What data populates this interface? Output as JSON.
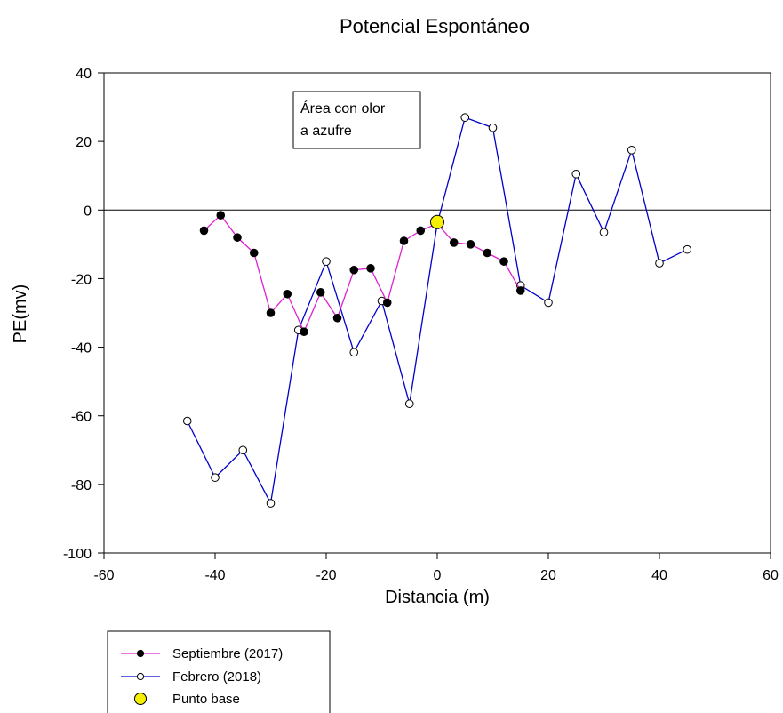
{
  "chart_data": {
    "type": "line",
    "title": "Potencial Espontáneo",
    "xlabel": "Distancia (m)",
    "ylabel": "PE(mv)",
    "xlim": [
      -60,
      60
    ],
    "ylim": [
      -100,
      40
    ],
    "xticks": [
      -60,
      -40,
      -20,
      0,
      20,
      40,
      60
    ],
    "yticks": [
      -100,
      -80,
      -60,
      -40,
      -20,
      0,
      20,
      40
    ],
    "grid": false,
    "reference_line_y": 0,
    "legend_position": "bottom-left",
    "annotation": [
      "Área con olor",
      "a azufre"
    ],
    "series": [
      {
        "name": "Septiembre (2017)",
        "line_color": "#e020d0",
        "marker_fill": "#000000",
        "points": [
          [
            -42,
            -6
          ],
          [
            -39,
            -1.5
          ],
          [
            -36,
            -8
          ],
          [
            -33,
            -12.5
          ],
          [
            -30,
            -30
          ],
          [
            -27,
            -24.5
          ],
          [
            -24,
            -35.5
          ],
          [
            -21,
            -24
          ],
          [
            -18,
            -31.5
          ],
          [
            -15,
            -17.5
          ],
          [
            -12,
            -17
          ],
          [
            -9,
            -27
          ],
          [
            -6,
            -9
          ],
          [
            -3,
            -6
          ],
          [
            0,
            -4
          ],
          [
            3,
            -9.5
          ],
          [
            6,
            -10
          ],
          [
            9,
            -12.5
          ],
          [
            12,
            -15
          ],
          [
            15,
            -23.5
          ]
        ]
      },
      {
        "name": "Febrero (2018)",
        "line_color": "#0000cc",
        "marker_fill": "#ffffff",
        "points": [
          [
            -45,
            -61.5
          ],
          [
            -40,
            -78
          ],
          [
            -35,
            -70
          ],
          [
            -30,
            -85.5
          ],
          [
            -25,
            -35
          ],
          [
            -20,
            -15
          ],
          [
            -15,
            -41.5
          ],
          [
            -10,
            -26.5
          ],
          [
            -5,
            -56.5
          ],
          [
            0,
            -4
          ],
          [
            5,
            27
          ],
          [
            10,
            24
          ],
          [
            15,
            -22
          ],
          [
            20,
            -27
          ],
          [
            25,
            10.5
          ],
          [
            30,
            -6.5
          ],
          [
            35,
            17.5
          ],
          [
            40,
            -15.5
          ],
          [
            45,
            -11.5
          ]
        ]
      },
      {
        "name": "Punto base",
        "marker_fill": "#f5f000",
        "points": [
          [
            0,
            -3.5
          ]
        ]
      }
    ]
  }
}
